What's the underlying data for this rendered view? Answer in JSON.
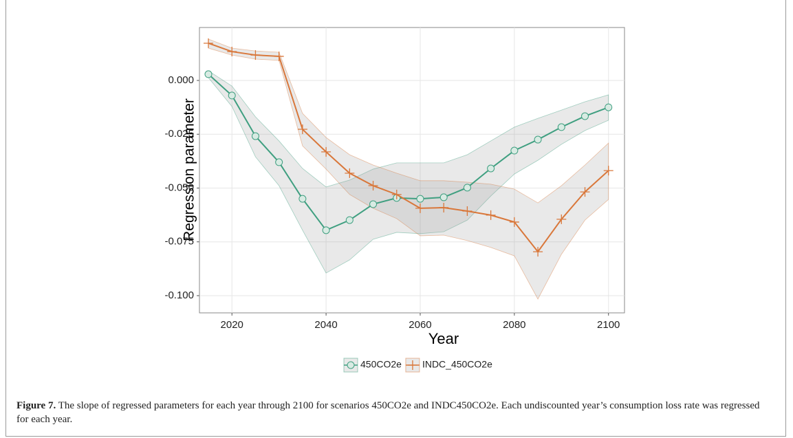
{
  "chart_data": {
    "type": "line",
    "x_label": "Year",
    "y_label": "Regression parameter",
    "x": [
      2015,
      2020,
      2025,
      2030,
      2035,
      2040,
      2045,
      2050,
      2055,
      2060,
      2065,
      2070,
      2075,
      2080,
      2085,
      2090,
      2095,
      2100
    ],
    "series": [
      {
        "name": "450CO2e",
        "color": "#3f9f80",
        "marker": "circle",
        "values": [
          0.0029,
          -0.007,
          -0.0259,
          -0.038,
          -0.055,
          -0.0696,
          -0.0649,
          -0.0575,
          -0.0546,
          -0.055,
          -0.0543,
          -0.0498,
          -0.0409,
          -0.0326,
          -0.0275,
          -0.0217,
          -0.0166,
          -0.0125
        ],
        "upper": [
          0.0045,
          -0.0026,
          -0.0169,
          -0.0281,
          -0.0409,
          -0.0495,
          -0.0463,
          -0.0412,
          -0.0383,
          -0.0383,
          -0.0383,
          -0.0345,
          -0.0281,
          -0.0217,
          -0.0176,
          -0.0138,
          -0.0099,
          -0.0067
        ],
        "lower": [
          0.0013,
          -0.0121,
          -0.0355,
          -0.0489,
          -0.0696,
          -0.0895,
          -0.0834,
          -0.0738,
          -0.0706,
          -0.0712,
          -0.0703,
          -0.0649,
          -0.0537,
          -0.0435,
          -0.0371,
          -0.0297,
          -0.0233,
          -0.0185
        ]
      },
      {
        "name": "INDC_450CO2e",
        "color": "#d9773a",
        "marker": "plus",
        "values": [
          0.0173,
          0.0134,
          0.0118,
          0.0112,
          -0.0227,
          -0.0332,
          -0.0431,
          -0.0489,
          -0.053,
          -0.0594,
          -0.0591,
          -0.0607,
          -0.0626,
          -0.0658,
          -0.0796,
          -0.0645,
          -0.0518,
          -0.0419
        ],
        "upper": [
          0.0192,
          0.015,
          0.0137,
          0.0131,
          -0.0153,
          -0.0265,
          -0.0345,
          -0.0393,
          -0.0431,
          -0.0466,
          -0.0466,
          -0.0473,
          -0.0482,
          -0.0505,
          -0.0569,
          -0.0489,
          -0.0393,
          -0.0291
        ],
        "lower": [
          0.015,
          0.0118,
          0.0099,
          0.0093,
          -0.0304,
          -0.0412,
          -0.053,
          -0.0594,
          -0.0642,
          -0.0722,
          -0.0719,
          -0.0744,
          -0.0776,
          -0.0815,
          -0.1016,
          -0.0808,
          -0.0649,
          -0.0553
        ]
      }
    ],
    "xlim": [
      2013.1,
      2103.4
    ],
    "xticks": [
      2020,
      2040,
      2060,
      2080,
      2100
    ],
    "ylim": [
      -0.108,
      0.0246
    ],
    "yticks": [
      {
        "value": 0,
        "label": "0.000"
      },
      {
        "value": -0.025,
        "label": "-0.025"
      },
      {
        "value": -0.05,
        "label": "-0.050"
      },
      {
        "value": -0.075,
        "label": "-0.075"
      },
      {
        "value": -0.1,
        "label": "-0.100"
      }
    ],
    "grid": true,
    "legend": "bottom"
  },
  "caption": {
    "label": "Figure 7.",
    "text": "The slope of regressed parameters for each year through 2100 for scenarios 450CO2e and INDC450CO2e. Each undiscounted year’s consumption loss rate was regressed for each year."
  }
}
